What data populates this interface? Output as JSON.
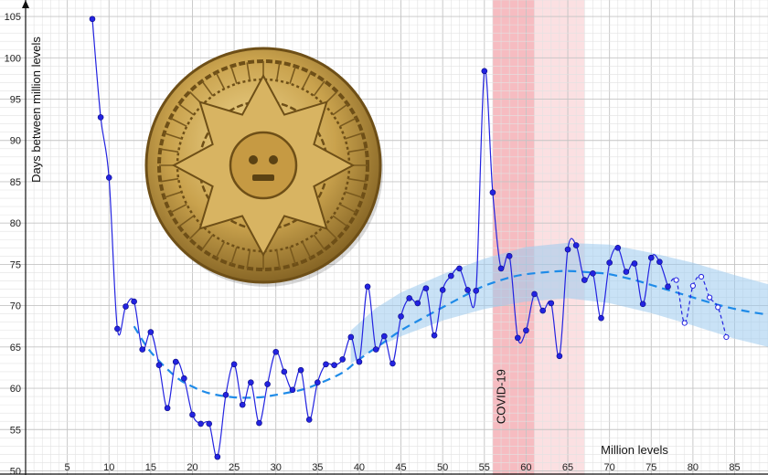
{
  "chart_data": {
    "type": "line",
    "xlabel": "Million levels",
    "ylabel": "Days between million levels",
    "xlim": [
      0,
      89
    ],
    "ylim": [
      49.5,
      107
    ],
    "x_ticks": [
      5,
      10,
      15,
      20,
      25,
      30,
      35,
      40,
      45,
      50,
      55,
      60,
      65,
      70,
      75,
      80,
      85
    ],
    "y_ticks": [
      50,
      55,
      60,
      65,
      70,
      75,
      80,
      85,
      90,
      95,
      100,
      105
    ],
    "grid": true,
    "covid_band": {
      "label": "COVID-19",
      "x_from": 56,
      "x_to": 61,
      "soft_to": 67
    },
    "series": [
      {
        "kind": "observed",
        "color": "#2323e0",
        "points": [
          [
            8,
            104.7
          ],
          [
            9,
            92.8
          ],
          [
            10,
            85.5
          ],
          [
            11,
            67.2
          ],
          [
            12,
            69.9
          ],
          [
            13,
            70.5
          ],
          [
            14,
            64.7
          ],
          [
            15,
            66.8
          ],
          [
            16,
            62.8
          ],
          [
            17,
            57.6
          ],
          [
            18,
            63.2
          ],
          [
            19,
            61.2
          ],
          [
            20,
            56.8
          ],
          [
            21,
            55.7
          ],
          [
            22,
            55.7
          ],
          [
            23,
            51.7
          ],
          [
            24,
            59.2
          ],
          [
            25,
            62.9
          ],
          [
            26,
            58.0
          ],
          [
            27,
            60.7
          ],
          [
            28,
            55.8
          ],
          [
            29,
            60.5
          ],
          [
            30,
            64.4
          ],
          [
            31,
            62.0
          ],
          [
            32,
            59.8
          ],
          [
            33,
            62.2
          ],
          [
            34,
            56.2
          ],
          [
            35,
            60.7
          ],
          [
            36,
            62.9
          ],
          [
            37,
            62.8
          ],
          [
            38,
            63.5
          ],
          [
            39,
            66.2
          ],
          [
            40,
            63.2
          ],
          [
            41,
            72.3
          ],
          [
            42,
            64.7
          ],
          [
            43,
            66.3
          ],
          [
            44,
            63.0
          ],
          [
            45,
            68.7
          ],
          [
            46,
            70.9
          ],
          [
            47,
            70.3
          ],
          [
            48,
            72.1
          ],
          [
            49,
            66.4
          ],
          [
            50,
            71.9
          ],
          [
            51,
            73.6
          ],
          [
            52,
            74.5
          ],
          [
            53,
            71.9
          ],
          [
            54,
            71.8
          ],
          [
            55,
            98.4
          ],
          [
            56,
            83.7
          ],
          [
            57,
            74.5
          ],
          [
            58,
            76.0
          ],
          [
            59,
            66.1
          ],
          [
            60,
            67.0
          ],
          [
            61,
            71.4
          ],
          [
            62,
            69.4
          ],
          [
            63,
            70.3
          ],
          [
            64,
            63.9
          ],
          [
            65,
            76.8
          ],
          [
            66,
            77.3
          ],
          [
            67,
            73.1
          ],
          [
            68,
            73.9
          ],
          [
            69,
            68.5
          ],
          [
            70,
            75.2
          ],
          [
            71,
            77.0
          ],
          [
            72,
            74.1
          ],
          [
            73,
            75.1
          ],
          [
            74,
            70.2
          ],
          [
            75,
            75.8
          ],
          [
            76,
            75.3
          ],
          [
            77,
            72.3
          ]
        ]
      },
      {
        "kind": "projected",
        "color": "#2323e0",
        "points": [
          [
            77,
            72.3
          ],
          [
            78,
            73.1
          ],
          [
            79,
            67.9
          ],
          [
            80,
            72.4
          ],
          [
            81,
            73.5
          ],
          [
            82,
            71.0
          ],
          [
            83,
            69.8
          ],
          [
            84,
            66.2
          ]
        ]
      },
      {
        "kind": "trend",
        "color": "#1f8be8",
        "points": [
          [
            13,
            67.5
          ],
          [
            15,
            64.4
          ],
          [
            18,
            61.4
          ],
          [
            20,
            60.2
          ],
          [
            22,
            59.4
          ],
          [
            25,
            58.9
          ],
          [
            28,
            58.9
          ],
          [
            30,
            59.2
          ],
          [
            33,
            59.8
          ],
          [
            35,
            60.5
          ],
          [
            38,
            61.9
          ],
          [
            40,
            63.5
          ],
          [
            43,
            65.6
          ],
          [
            45,
            67.0
          ],
          [
            48,
            68.7
          ],
          [
            50,
            69.8
          ],
          [
            53,
            71.4
          ],
          [
            55,
            72.4
          ],
          [
            58,
            73.4
          ],
          [
            60,
            73.8
          ],
          [
            63,
            74.1
          ],
          [
            65,
            74.2
          ],
          [
            68,
            74.0
          ],
          [
            70,
            73.8
          ],
          [
            73,
            73.1
          ],
          [
            75,
            72.5
          ],
          [
            78,
            71.6
          ],
          [
            80,
            71.0
          ],
          [
            83,
            70.1
          ],
          [
            86,
            69.4
          ],
          [
            89,
            68.9
          ]
        ]
      },
      {
        "kind": "confidence_band",
        "color": "#9ccbee",
        "upper": [
          [
            39,
            67.0
          ],
          [
            42,
            69.7
          ],
          [
            45,
            71.6
          ],
          [
            50,
            73.8
          ],
          [
            55,
            75.7
          ],
          [
            60,
            77.1
          ],
          [
            65,
            77.6
          ],
          [
            70,
            77.4
          ],
          [
            75,
            76.4
          ],
          [
            80,
            75.2
          ],
          [
            85,
            73.7
          ],
          [
            89,
            72.6
          ]
        ],
        "lower": [
          [
            39,
            63.0
          ],
          [
            42,
            64.9
          ],
          [
            45,
            66.3
          ],
          [
            50,
            68.2
          ],
          [
            55,
            69.6
          ],
          [
            60,
            70.5
          ],
          [
            65,
            70.9
          ],
          [
            70,
            70.3
          ],
          [
            75,
            69.1
          ],
          [
            80,
            67.6
          ],
          [
            85,
            66.0
          ],
          [
            89,
            65.0
          ]
        ]
      }
    ]
  },
  "image": {
    "name": "aztec-calendar-stone",
    "colors": [
      "#7a5a1e",
      "#c9a24d",
      "#e9cf8a"
    ]
  }
}
